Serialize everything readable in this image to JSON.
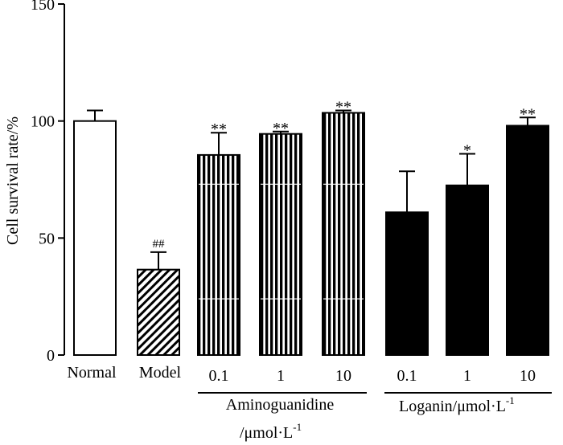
{
  "chart_data": {
    "type": "bar",
    "title": "",
    "xlabel": "",
    "ylabel": "Cell survival rate/%",
    "ylim": [
      0,
      150
    ],
    "yticks": [
      0,
      50,
      100,
      150
    ],
    "categories": [
      "Normal",
      "Model",
      "0.1",
      "1",
      "10",
      "0.1",
      "1",
      "10"
    ],
    "values": [
      100,
      36.5,
      85.5,
      94.5,
      103.5,
      61,
      72.5,
      98
    ],
    "errors": [
      4.5,
      7.5,
      9.5,
      1,
      1,
      17.5,
      13.5,
      3.5
    ],
    "fills": [
      "white",
      "diagonal",
      "vertical",
      "vertical",
      "vertical",
      "black",
      "black",
      "black"
    ],
    "significance": [
      "",
      "##",
      "**",
      "**",
      "**",
      "",
      "*",
      "**"
    ],
    "groups": [
      {
        "label_line1": "Aminoguanidine",
        "label_line2": "/μmol·L",
        "sup": "-1",
        "from": 2,
        "to": 4
      },
      {
        "label_line1": "Loganin/μmol·L",
        "label_line2": "",
        "sup": "-1",
        "from": 5,
        "to": 7
      }
    ]
  }
}
